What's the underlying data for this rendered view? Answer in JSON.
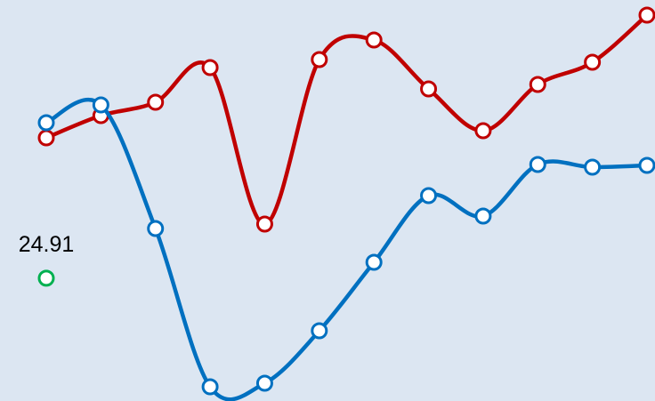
{
  "chart_data": {
    "type": "line",
    "smooth": true,
    "categories": [
      null,
      null,
      null,
      null,
      null,
      null,
      null,
      null,
      null,
      null,
      null,
      null
    ],
    "ylim": [
      11.1,
      56.2
    ],
    "series": [
      {
        "color": "#c00000",
        "values": [
          40.7,
          43.2,
          44.7,
          48.6,
          31.0,
          49.5,
          51.7,
          46.2,
          41.5,
          46.7,
          49.2,
          54.5
        ]
      },
      {
        "color": "#0070c0",
        "values": [
          42.4,
          44.4,
          30.5,
          12.7,
          13.1,
          19.0,
          26.7,
          34.2,
          31.9,
          37.7,
          37.4,
          37.6
        ]
      },
      {
        "color": "#00b050",
        "values": [
          24.91,
          null,
          null,
          null,
          null,
          null,
          null,
          null,
          null,
          null,
          null,
          null
        ],
        "data_labels": true
      }
    ]
  }
}
